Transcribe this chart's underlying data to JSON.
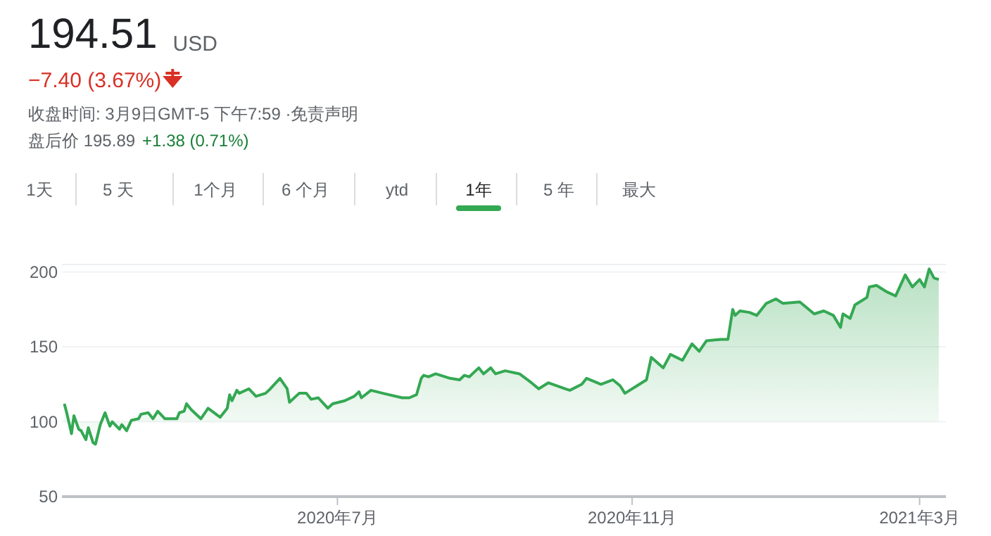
{
  "chart_data": {
    "type": "area",
    "color": "#34a853",
    "grid": "y",
    "annotations": [
      "194.51",
      "USD",
      "−7.40 (3.67%)",
      "收盘时间: 3月9日GMT-5 下午7:59 ·免责声明",
      "盘后价 195.89",
      "+1.38 (0.71%)",
      "1天",
      "5 天",
      "1个月",
      "6 个月",
      "ytd",
      "1年",
      "5 年",
      "最大"
    ],
    "xlim": [
      "2020-03-08",
      "2021-03-12"
    ],
    "ylim": [
      50,
      205
    ],
    "yticks": [
      50,
      100,
      150,
      200
    ],
    "xticks": [
      {
        "value": "2020-07-01",
        "label": "2020年7月"
      },
      {
        "value": "2020-11-01",
        "label": "2020年11月"
      },
      {
        "value": "2021-03-01",
        "label": "2021年3月"
      }
    ],
    "x": [
      "2020-03-09",
      "2020-03-10",
      "2020-03-12",
      "2020-03-13",
      "2020-03-15",
      "2020-03-16",
      "2020-03-18",
      "2020-03-19",
      "2020-03-21",
      "2020-03-22",
      "2020-03-24",
      "2020-03-26",
      "2020-03-28",
      "2020-03-29",
      "2020-04-01",
      "2020-04-02",
      "2020-04-04",
      "2020-04-06",
      "2020-04-09",
      "2020-04-10",
      "2020-04-13",
      "2020-04-15",
      "2020-04-17",
      "2020-04-20",
      "2020-04-25",
      "2020-04-26",
      "2020-04-28",
      "2020-04-29",
      "2020-05-01",
      "2020-05-05",
      "2020-05-08",
      "2020-05-13",
      "2020-05-16",
      "2020-05-17",
      "2020-05-18",
      "2020-05-20",
      "2020-05-21",
      "2020-05-25",
      "2020-05-28",
      "2020-06-01",
      "2020-06-03",
      "2020-06-07",
      "2020-06-10",
      "2020-06-11",
      "2020-06-15",
      "2020-06-18",
      "2020-06-20",
      "2020-06-23",
      "2020-06-27",
      "2020-06-29",
      "2020-07-04",
      "2020-07-08",
      "2020-07-10",
      "2020-07-11",
      "2020-07-15",
      "2020-07-20",
      "2020-07-28",
      "2020-07-31",
      "2020-08-03",
      "2020-08-05",
      "2020-08-06",
      "2020-08-08",
      "2020-08-11",
      "2020-08-17",
      "2020-08-21",
      "2020-08-23",
      "2020-08-25",
      "2020-08-29",
      "2020-08-31",
      "2020-09-03",
      "2020-09-05",
      "2020-09-09",
      "2020-09-15",
      "2020-09-20",
      "2020-09-23",
      "2020-09-27",
      "2020-10-04",
      "2020-10-06",
      "2020-10-11",
      "2020-10-13",
      "2020-10-19",
      "2020-10-24",
      "2020-10-27",
      "2020-10-29",
      "2020-10-31",
      "2020-11-03",
      "2020-11-07",
      "2020-11-09",
      "2020-11-14",
      "2020-11-17",
      "2020-11-22",
      "2020-11-26",
      "2020-11-29",
      "2020-12-02",
      "2020-12-08",
      "2020-12-11",
      "2020-12-13",
      "2020-12-14",
      "2020-12-16",
      "2020-12-20",
      "2020-12-23",
      "2020-12-27",
      "2020-12-31",
      "2021-01-03",
      "2021-01-10",
      "2021-01-16",
      "2021-01-20",
      "2021-01-24",
      "2021-01-27",
      "2021-01-28",
      "2021-01-31",
      "2021-02-02",
      "2021-02-07",
      "2021-02-08",
      "2021-02-11",
      "2021-02-15",
      "2021-02-19",
      "2021-02-23",
      "2021-02-26",
      "2021-03-01",
      "2021-03-03",
      "2021-03-05",
      "2021-03-07",
      "2021-03-09"
    ],
    "values": [
      112,
      106,
      92,
      104,
      95,
      94,
      88,
      96,
      86,
      85,
      98,
      106,
      97,
      100,
      95,
      98,
      94,
      101,
      102,
      105,
      106,
      102,
      107,
      102,
      102,
      106,
      107,
      112,
      108,
      102,
      109,
      103,
      109,
      118,
      114,
      121,
      119,
      122,
      117,
      119,
      122,
      129,
      122,
      113,
      119,
      119,
      115,
      116,
      109,
      112,
      114,
      117,
      120,
      116,
      121,
      119,
      116,
      116,
      118,
      129,
      131,
      130,
      132,
      129,
      128,
      131,
      130,
      136,
      132,
      136,
      132,
      134,
      132,
      126,
      122,
      126,
      122,
      121,
      125,
      129,
      125,
      128,
      124,
      119,
      121,
      124,
      128,
      143,
      136,
      145,
      141,
      152,
      147,
      154,
      155,
      155,
      175,
      171,
      174,
      173,
      171,
      179,
      182,
      179,
      180,
      172,
      174,
      171,
      163,
      172,
      169,
      178,
      183,
      190,
      191,
      187,
      184,
      198,
      190,
      195,
      190,
      202,
      196,
      195
    ]
  }
}
